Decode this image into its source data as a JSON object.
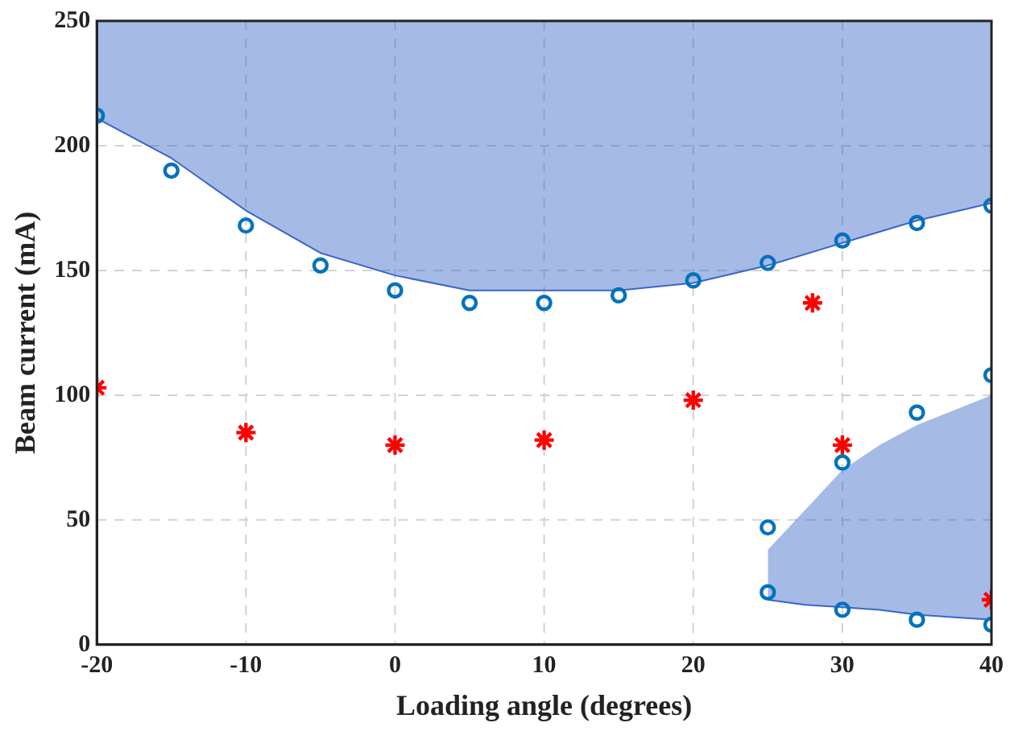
{
  "chart_data": {
    "type": "scatter",
    "xlabel": "Loading angle (degrees)",
    "ylabel": "Beam current (mA)",
    "xlim": [
      -20,
      40
    ],
    "xticks": [
      -20,
      -10,
      0,
      10,
      20,
      30,
      40
    ],
    "ylim": [
      0,
      250
    ],
    "yticks": [
      0,
      50,
      100,
      150,
      200,
      250
    ],
    "grid": true,
    "series": [
      {
        "type": "line",
        "marker": "none",
        "color": "#3a66c8",
        "x": [
          -20,
          -15,
          -10,
          -5,
          0,
          5,
          10,
          15,
          20,
          25,
          30,
          35,
          40
        ],
        "values": [
          211,
          195,
          174,
          157,
          148,
          142,
          142,
          142,
          145,
          152,
          161,
          170,
          177
        ],
        "lower": [
          211,
          195,
          174,
          157,
          148,
          142,
          142,
          142,
          145,
          152,
          161,
          170,
          177
        ],
        "upper": [
          250,
          250,
          250,
          250,
          250,
          250,
          250,
          250,
          250,
          250,
          250,
          250,
          250
        ]
      },
      {
        "type": "line",
        "marker": "none",
        "color": "#3a66c8",
        "x": [
          25,
          27.5,
          30,
          32.5,
          35,
          37.5,
          40
        ],
        "values": [
          18,
          16,
          15,
          14,
          12,
          11,
          10
        ],
        "lower": [
          18,
          16,
          15,
          14,
          12,
          11,
          10
        ],
        "upper": [
          38,
          54,
          70,
          80,
          88,
          94,
          100
        ]
      },
      {
        "type": "scatter",
        "marker": "circle",
        "color": "#0072bd",
        "x": [
          -20,
          -15,
          -10,
          -5,
          0,
          5,
          10,
          15,
          20,
          25,
          30,
          35,
          40,
          40,
          35,
          30,
          25,
          25,
          30,
          35,
          40
        ],
        "values": [
          212,
          190,
          168,
          152,
          142,
          137,
          137,
          140,
          146,
          153,
          162,
          169,
          176,
          108,
          93,
          73,
          47,
          21,
          14,
          10,
          8
        ]
      },
      {
        "type": "scatter",
        "marker": "cross",
        "color": "#ff0000",
        "x": [
          -20,
          -10,
          0,
          10,
          20,
          28,
          30,
          40
        ],
        "values": [
          103,
          85,
          80,
          82,
          98,
          137,
          80,
          18
        ]
      }
    ]
  }
}
